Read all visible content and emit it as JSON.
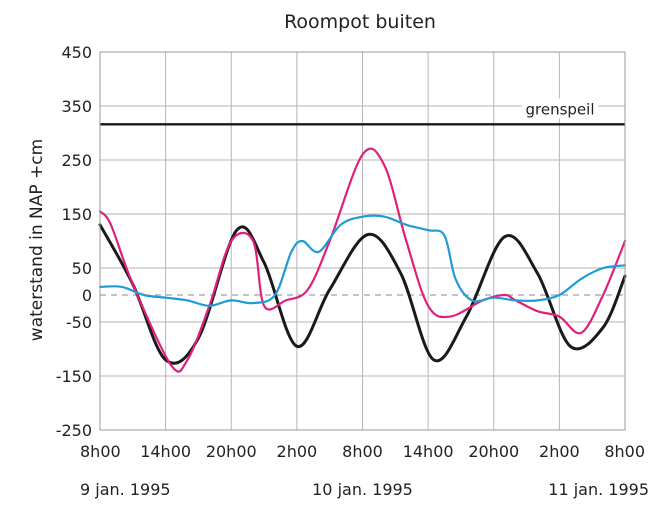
{
  "chart_data": {
    "type": "line",
    "title": "Roompot buiten",
    "ylabel": "waterstand in NAP  +cm",
    "xlabel": "",
    "x_unit": "hours since 9 jan. 1995 08:00",
    "xlim": [
      0,
      48
    ],
    "ylim": [
      -250,
      450
    ],
    "grid": true,
    "x_ticks": [
      0,
      6,
      12,
      18,
      24,
      30,
      36,
      42,
      48
    ],
    "x_tick_labels": [
      "8h00",
      "14h00",
      "20h00",
      "2h00",
      "8h00",
      "14h00",
      "20h00",
      "2h00",
      "8h00"
    ],
    "y_ticks": [
      {
        "value": 450,
        "label": "450"
      },
      {
        "value": 350,
        "label": "350"
      },
      {
        "value": 250,
        "label": "250"
      },
      {
        "value": 150,
        "label": "150"
      },
      {
        "value": 50,
        "label": "50"
      },
      {
        "value": 0,
        "label": "0"
      },
      {
        "value": -50,
        "label": "-50"
      },
      {
        "value": -150,
        "label": "-150"
      },
      {
        "value": -250,
        "label": "-250"
      }
    ],
    "date_labels": [
      {
        "x": 0,
        "label": "9 jan. 1995"
      },
      {
        "x": 24,
        "label": "10 jan. 1995"
      },
      {
        "x": 48,
        "label": "11 jan. 1995"
      }
    ],
    "reference_line": {
      "label": "grenspeil",
      "y": 316,
      "color": "#1a1a1a"
    },
    "series": [
      {
        "color": "#1a1a1a",
        "x": [
          0,
          3,
          6,
          9,
          12.5,
          15,
          18,
          21,
          24.5,
          27.5,
          30.5,
          33.5,
          37,
          40,
          43,
          46,
          48
        ],
        "y": [
          130,
          20,
          -120,
          -80,
          120,
          60,
          -95,
          10,
          112,
          40,
          -120,
          -40,
          108,
          40,
          -95,
          -60,
          35
        ]
      },
      {
        "color": "#e0207d",
        "x": [
          0,
          1,
          3,
          6.5,
          8,
          10,
          12,
          14,
          15,
          17,
          19,
          21,
          24,
          26,
          28,
          30,
          32,
          35,
          37,
          38,
          40,
          42,
          44,
          46,
          48
        ],
        "y": [
          155,
          130,
          20,
          -130,
          -120,
          -20,
          100,
          100,
          -20,
          -10,
          10,
          100,
          260,
          240,
          100,
          -20,
          -40,
          -10,
          0,
          -10,
          -30,
          -40,
          -70,
          0,
          100
        ]
      },
      {
        "color": "#1f9bd6",
        "x": [
          0,
          2,
          4,
          6,
          8,
          10,
          12,
          14,
          16,
          17.5,
          18.5,
          20,
          22,
          24,
          26,
          28,
          30,
          31.5,
          32.5,
          34,
          36,
          38,
          40,
          42,
          44,
          46,
          48
        ],
        "y": [
          15,
          15,
          0,
          -5,
          -10,
          -20,
          -10,
          -15,
          0,
          80,
          100,
          80,
          130,
          145,
          145,
          130,
          120,
          110,
          30,
          -10,
          -5,
          -10,
          -10,
          0,
          30,
          50,
          55
        ]
      }
    ]
  }
}
